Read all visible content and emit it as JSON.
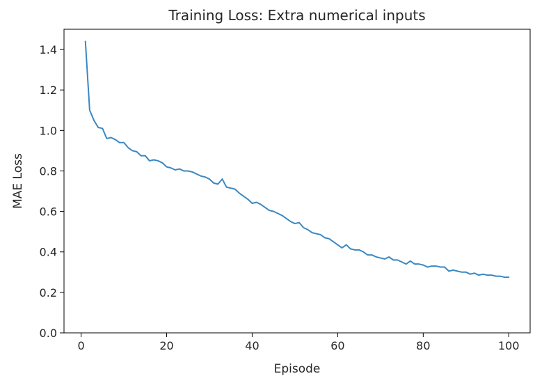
{
  "chart_data": {
    "type": "line",
    "title": "Training Loss: Extra numerical inputs",
    "xlabel": "Episode",
    "ylabel": "MAE Loss",
    "xlim": [
      -4,
      105
    ],
    "ylim": [
      0.0,
      1.5
    ],
    "xticks": [
      0,
      20,
      40,
      60,
      80,
      100
    ],
    "yticks": [
      0.0,
      0.2,
      0.4,
      0.6,
      0.8,
      1.0,
      1.2,
      1.4
    ],
    "xtick_labels": [
      "0",
      "20",
      "40",
      "60",
      "80",
      "100"
    ],
    "ytick_labels": [
      "0.0",
      "0.2",
      "0.4",
      "0.6",
      "0.8",
      "1.0",
      "1.2",
      "1.4"
    ],
    "grid": false,
    "line_color": "#3a88c2",
    "x": [
      1,
      2,
      3,
      4,
      5,
      6,
      7,
      8,
      9,
      10,
      11,
      12,
      13,
      14,
      15,
      16,
      17,
      18,
      19,
      20,
      21,
      22,
      23,
      24,
      25,
      26,
      27,
      28,
      29,
      30,
      31,
      32,
      33,
      34,
      35,
      36,
      37,
      38,
      39,
      40,
      41,
      42,
      43,
      44,
      45,
      46,
      47,
      48,
      49,
      50,
      51,
      52,
      53,
      54,
      55,
      56,
      57,
      58,
      59,
      60,
      61,
      62,
      63,
      64,
      65,
      66,
      67,
      68,
      69,
      70,
      71,
      72,
      73,
      74,
      75,
      76,
      77,
      78,
      79,
      80,
      81,
      82,
      83,
      84,
      85,
      86,
      87,
      88,
      89,
      90,
      91,
      92,
      93,
      94,
      95,
      96,
      97,
      98,
      99,
      100
    ],
    "y": [
      1.44,
      1.1,
      1.05,
      1.015,
      1.01,
      0.96,
      0.965,
      0.955,
      0.94,
      0.94,
      0.915,
      0.9,
      0.895,
      0.875,
      0.875,
      0.85,
      0.855,
      0.85,
      0.84,
      0.82,
      0.815,
      0.805,
      0.81,
      0.8,
      0.8,
      0.795,
      0.785,
      0.775,
      0.77,
      0.76,
      0.74,
      0.735,
      0.76,
      0.72,
      0.715,
      0.71,
      0.69,
      0.675,
      0.66,
      0.64,
      0.645,
      0.635,
      0.62,
      0.605,
      0.6,
      0.59,
      0.58,
      0.565,
      0.55,
      0.54,
      0.545,
      0.52,
      0.51,
      0.495,
      0.49,
      0.485,
      0.47,
      0.465,
      0.45,
      0.435,
      0.42,
      0.435,
      0.415,
      0.41,
      0.41,
      0.4,
      0.385,
      0.385,
      0.375,
      0.37,
      0.365,
      0.375,
      0.36,
      0.36,
      0.35,
      0.34,
      0.355,
      0.34,
      0.34,
      0.335,
      0.325,
      0.33,
      0.33,
      0.325,
      0.325,
      0.305,
      0.31,
      0.305,
      0.3,
      0.3,
      0.29,
      0.295,
      0.285,
      0.29,
      0.285,
      0.285,
      0.28,
      0.28,
      0.275,
      0.275
    ]
  }
}
